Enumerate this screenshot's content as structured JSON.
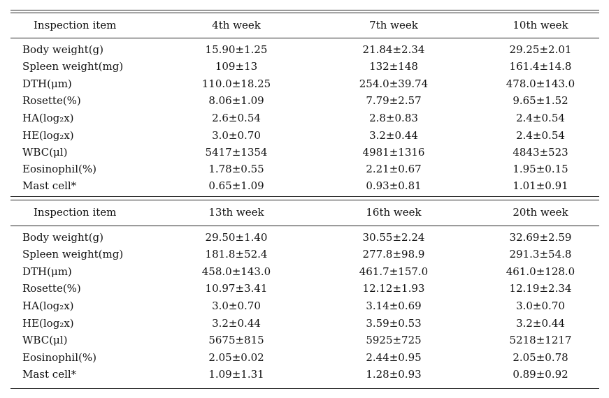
{
  "tables": [
    {
      "header": [
        "Inspection item",
        "4th week",
        "7th week",
        "10th week"
      ],
      "rows": [
        [
          "Body weight(g)",
          "15.90±1.25",
          "21.84±2.34",
          "29.25±2.01"
        ],
        [
          "Spleen weight(mg)",
          "109±13",
          "132±148",
          "161.4±14.8"
        ],
        [
          "DTH(μm)",
          "110.0±18.25",
          "254.0±39.74",
          "478.0±143.0"
        ],
        [
          "Rosette(%)",
          "8.06±1.09",
          "7.79±2.57",
          "9.65±1.52"
        ],
        [
          "HA(log₂x)",
          "2.6±0.54",
          "2.8±0.83",
          "2.4±0.54"
        ],
        [
          "HE(log₂x)",
          "3.0±0.70",
          "3.2±0.44",
          "2.4±0.54"
        ],
        [
          "WBC(μl)",
          "5417±1354",
          "4981±1316",
          "4843±523"
        ],
        [
          "Eosinophil(%)",
          "1.78±0.55",
          "2.21±0.67",
          "1.95±0.15"
        ],
        [
          "Mast cell*",
          "0.65±1.09",
          "0.93±0.81",
          "1.01±0.91"
        ]
      ]
    },
    {
      "header": [
        "Inspection item",
        "13th week",
        "16th week",
        "20th week"
      ],
      "rows": [
        [
          "Body weight(g)",
          "29.50±1.40",
          "30.55±2.24",
          "32.69±2.59"
        ],
        [
          "Spleen weight(mg)",
          "181.8±52.4",
          "277.8±98.9",
          "291.3±54.8"
        ],
        [
          "DTH(μm)",
          "458.0±143.0",
          "461.7±157.0",
          "461.0±128.0"
        ],
        [
          "Rosette(%)",
          "10.97±3.41",
          "12.12±1.93",
          "12.19±2.34"
        ],
        [
          "HA(log₂x)",
          "3.0±0.70",
          "3.14±0.69",
          "3.0±0.70"
        ],
        [
          "HE(log₂x)",
          "3.2±0.44",
          "3.59±0.53",
          "3.2±0.44"
        ],
        [
          "WBC(μl)",
          "5675±815",
          "5925±725",
          "5218±1217"
        ],
        [
          "Eosinophil(%)",
          "2.05±0.02",
          "2.44±0.95",
          "2.05±0.78"
        ],
        [
          "Mast cell*",
          "1.09±1.31",
          "1.28±0.93",
          "0.89±0.92"
        ]
      ]
    }
  ]
}
